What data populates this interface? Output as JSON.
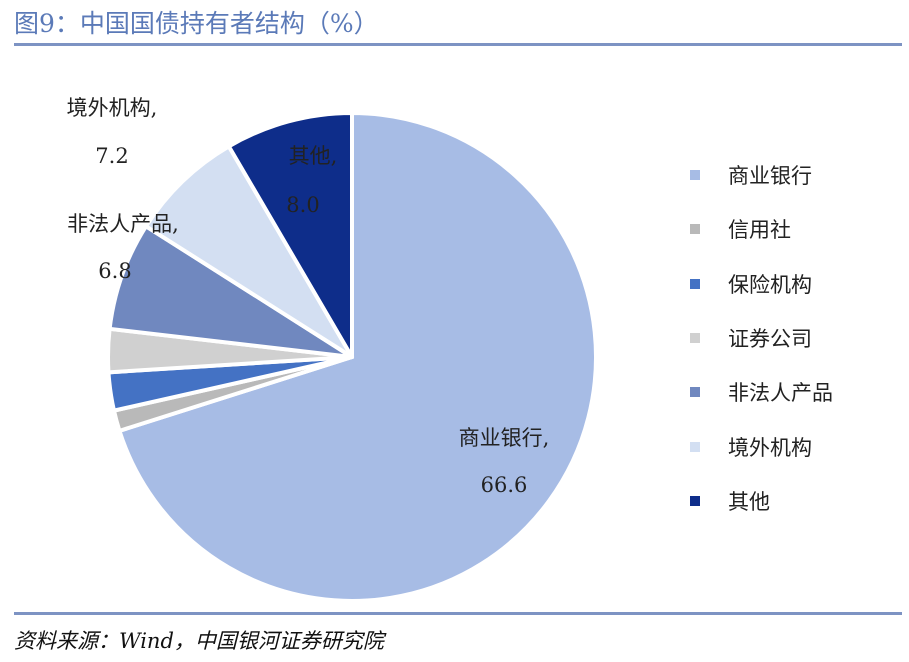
{
  "title": "图9：中国国债持有者结构（%）",
  "source": "资料来源：Wind，中国银河证券研究院",
  "chart_data": {
    "type": "pie",
    "title": "图9：中国国债持有者结构（%）",
    "slices": [
      {
        "name": "商业银行",
        "value": 66.6,
        "color": "#a7bce5",
        "label": "商业银行,",
        "value_label": "66.6",
        "show_label": true
      },
      {
        "name": "信用社",
        "value": 1.3,
        "color": "#b9b9b9",
        "show_label": false
      },
      {
        "name": "保险机构",
        "value": 2.4,
        "color": "#4472c4",
        "show_label": false
      },
      {
        "name": "证券公司",
        "value": 2.7,
        "color": "#d0d0d0",
        "show_label": false
      },
      {
        "name": "非法人产品",
        "value": 6.8,
        "color": "#7088bf",
        "label": "非法人产品,",
        "value_label": "6.8",
        "show_label": true
      },
      {
        "name": "境外机构",
        "value": 7.2,
        "color": "#d3dff2",
        "label": "境外机构,",
        "value_label": "7.2",
        "show_label": true
      },
      {
        "name": "其他",
        "value": 8.0,
        "color": "#0e2d8a",
        "label": "其他,",
        "value_label": "8.0",
        "show_label": true
      }
    ],
    "legend": [
      "商业银行",
      "信用社",
      "保险机构",
      "证券公司",
      "非法人产品",
      "境外机构",
      "其他"
    ],
    "legend_position": "right"
  }
}
